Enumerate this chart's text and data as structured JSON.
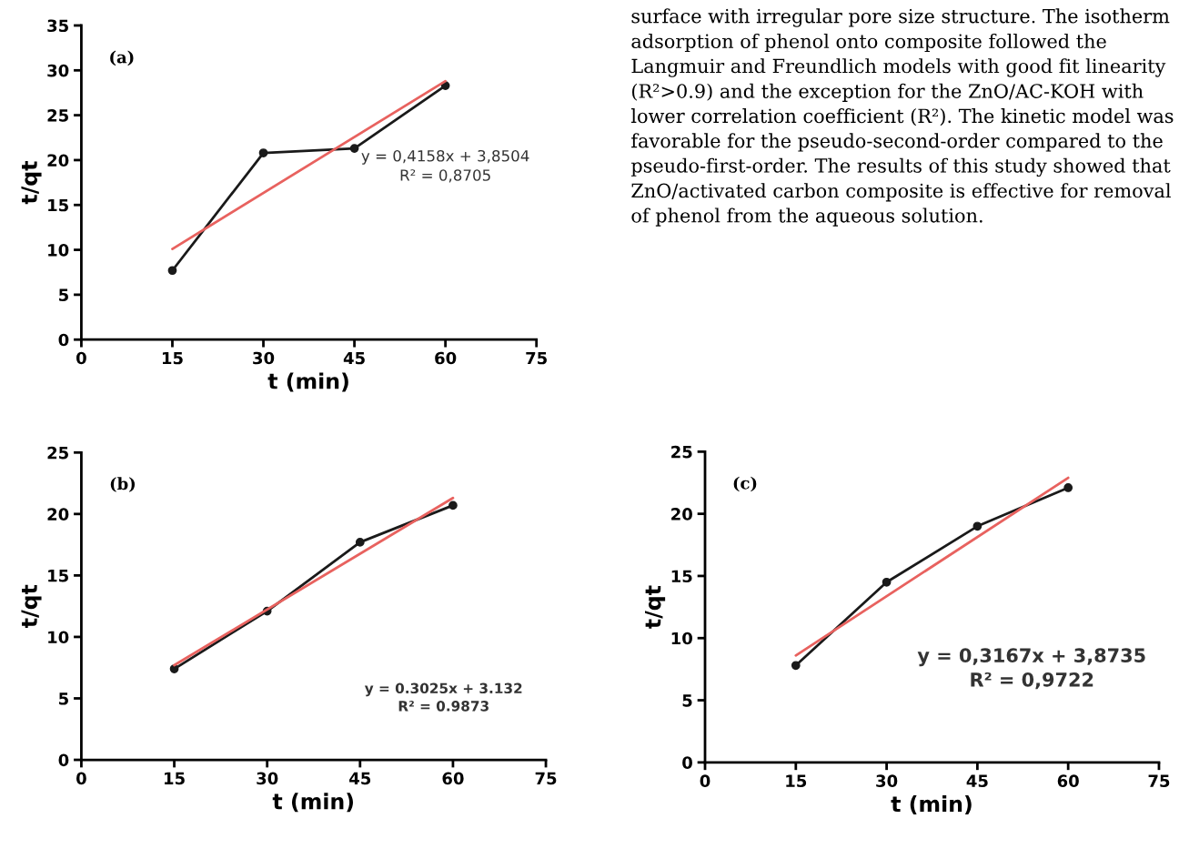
{
  "chart_data": [
    {
      "type": "line",
      "xlabel": "t (min)",
      "ylabel": "t/qt",
      "xlim": [
        0,
        75
      ],
      "ylim": [
        0,
        35
      ],
      "xticks": [
        0,
        15,
        30,
        45,
        60,
        75
      ],
      "yticks": [
        0,
        5,
        10,
        15,
        20,
        25,
        30,
        35
      ],
      "series": [
        {
          "color": "#1a1a1a",
          "marker": "circle",
          "x": [
            15,
            30,
            45,
            60
          ],
          "values": [
            7.7,
            20.8,
            21.3,
            28.3
          ]
        },
        {
          "color": "#e8625f",
          "marker": "none",
          "x": [
            15,
            60
          ],
          "values": [
            10.1,
            28.8
          ]
        }
      ],
      "annotations": [
        "(a)",
        "y = 0,4158x + 3,8504",
        "R² = 0,8705"
      ]
    },
    {
      "type": "other",
      "annotations": [
        "surface with irregular pore size structure. The isotherm adsorption of phenol onto composite followed the Langmuir and Freundlich models with good fit linearity (R²>0.9) and the exception for the ZnO/AC-KOH with lower correlation coefficient (R²). The kinetic model was favorable for the pseudo-second-order compared to the pseudo-first-order. The results of this study showed that ZnO/activated carbon composite is effective for removal of phenol from the aqueous solution."
      ]
    },
    {
      "type": "line",
      "xlabel": "t (min)",
      "ylabel": "t/qt",
      "xlim": [
        0,
        75
      ],
      "ylim": [
        0,
        25
      ],
      "xticks": [
        0,
        15,
        30,
        45,
        60,
        75
      ],
      "yticks": [
        0,
        5,
        10,
        15,
        20,
        25
      ],
      "series": [
        {
          "color": "#1a1a1a",
          "marker": "circle",
          "x": [
            15,
            30,
            45,
            60
          ],
          "values": [
            7.4,
            12.1,
            17.7,
            20.7
          ]
        },
        {
          "color": "#e8625f",
          "marker": "none",
          "x": [
            15,
            60
          ],
          "values": [
            7.7,
            21.3
          ]
        }
      ],
      "annotations": [
        "(b)",
        "y = 0.3025x + 3.132",
        "R² = 0.9873"
      ]
    },
    {
      "type": "line",
      "xlabel": "t (min)",
      "ylabel": "t/qt",
      "xlim": [
        0,
        75
      ],
      "ylim": [
        0,
        25
      ],
      "xticks": [
        0,
        15,
        30,
        45,
        60,
        75
      ],
      "yticks": [
        0,
        5,
        10,
        15,
        20,
        25
      ],
      "series": [
        {
          "color": "#1a1a1a",
          "marker": "circle",
          "x": [
            15,
            30,
            45,
            60
          ],
          "values": [
            7.8,
            14.5,
            19.0,
            22.1
          ]
        },
        {
          "color": "#e8625f",
          "marker": "none",
          "x": [
            15,
            60
          ],
          "values": [
            8.6,
            22.9
          ]
        }
      ],
      "annotations": [
        "(c)",
        "y = 0,3167x + 3,8735",
        "R² = 0,9722"
      ]
    }
  ]
}
